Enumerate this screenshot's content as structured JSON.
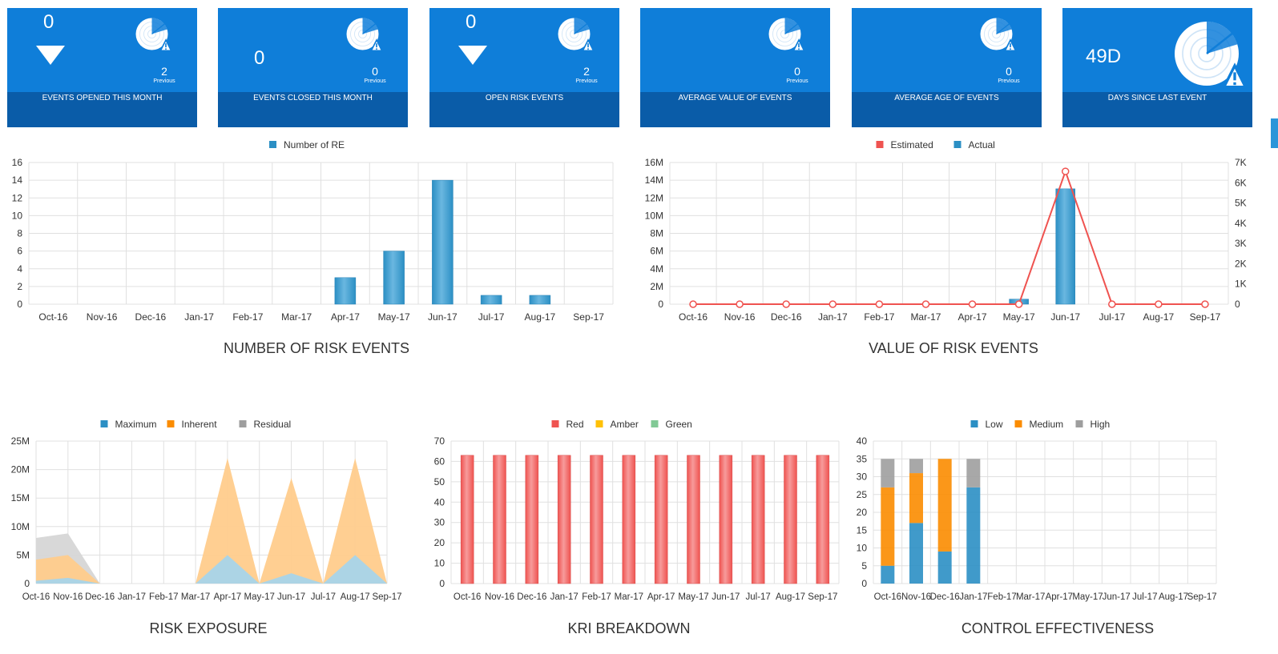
{
  "tiles": [
    {
      "value": "0",
      "arrow": true,
      "previous_value": "2",
      "previous_label": "Previous",
      "label": "EVENTS OPENED THIS MONTH"
    },
    {
      "value": "0",
      "arrow": false,
      "previous_value": "0",
      "previous_label": "Previous",
      "label": "EVENTS CLOSED THIS MONTH"
    },
    {
      "value": "0",
      "arrow": true,
      "previous_value": "2",
      "previous_label": "Previous",
      "label": "OPEN RISK EVENTS"
    },
    {
      "value": "",
      "arrow": false,
      "previous_value": "0",
      "previous_label": "Previous",
      "label": "AVERAGE VALUE OF EVENTS"
    },
    {
      "value": "",
      "arrow": false,
      "previous_value": "0",
      "previous_label": "Previous",
      "label": "AVERAGE AGE OF EVENTS"
    },
    {
      "value": "49D",
      "arrow": false,
      "previous_value": "",
      "previous_label": "",
      "label": "DAYS SINCE LAST EVENT"
    }
  ],
  "tile_icon": "radar-alert-icon",
  "colors": {
    "tile_bg": "#0f7ed9",
    "tile_band": "#0a5ca8",
    "blue_series": "#2b8fc4",
    "red": "#ef5350",
    "orange": "#fb8c00",
    "gray": "#9e9e9e",
    "amber": "#ffc107",
    "green": "#81c995"
  },
  "chart_data": [
    {
      "id": "number-of-risk-events",
      "type": "bar",
      "title": "NUMBER OF RISK EVENTS",
      "categories": [
        "Oct-16",
        "Nov-16",
        "Dec-16",
        "Jan-17",
        "Feb-17",
        "Mar-17",
        "Apr-17",
        "May-17",
        "Jun-17",
        "Jul-17",
        "Aug-17",
        "Sep-17"
      ],
      "series": [
        {
          "name": "Number of RE",
          "values": [
            0,
            0,
            0,
            0,
            0,
            0,
            3,
            6,
            14,
            1,
            1,
            0
          ]
        }
      ],
      "ylim": [
        0,
        16
      ],
      "yticks": [
        "0",
        "2",
        "4",
        "6",
        "8",
        "10",
        "12",
        "14",
        "16"
      ],
      "legend": "top-center",
      "grid": true
    },
    {
      "id": "value-of-risk-events",
      "type": "bar",
      "title": "VALUE OF RISK EVENTS",
      "categories": [
        "Oct-16",
        "Nov-16",
        "Dec-16",
        "Jan-17",
        "Feb-17",
        "Mar-17",
        "Apr-17",
        "May-17",
        "Jun-17",
        "Jul-17",
        "Aug-17",
        "Sep-17"
      ],
      "series": [
        {
          "name": "Estimated",
          "kind": "line",
          "axis": "left",
          "values": [
            0,
            0,
            0,
            0,
            0,
            0,
            0,
            0,
            15000000,
            0,
            0,
            0
          ]
        },
        {
          "name": "Actual",
          "kind": "bar",
          "axis": "right",
          "values": [
            0,
            0,
            0,
            0,
            0,
            0,
            0,
            250,
            5700,
            0,
            0,
            0
          ]
        }
      ],
      "ylim_left": [
        0,
        16000000
      ],
      "yticks_left": [
        "0",
        "2M",
        "4M",
        "6M",
        "8M",
        "10M",
        "12M",
        "14M",
        "16M"
      ],
      "ylim_right": [
        0,
        7000
      ],
      "yticks_right": [
        "0",
        "1K",
        "2K",
        "3K",
        "4K",
        "5K",
        "6K",
        "7K"
      ],
      "legend": "top-center",
      "grid": true
    },
    {
      "id": "risk-exposure",
      "type": "area",
      "title": "RISK EXPOSURE",
      "categories": [
        "Oct-16",
        "Nov-16",
        "Dec-16",
        "Jan-17",
        "Feb-17",
        "Mar-17",
        "Apr-17",
        "May-17",
        "Jun-17",
        "Jul-17",
        "Aug-17",
        "Sep-17"
      ],
      "series": [
        {
          "name": "Maximum",
          "values": [
            500000,
            1000000,
            0,
            0,
            0,
            0,
            5000000,
            0,
            1800000,
            0,
            5000000,
            0
          ]
        },
        {
          "name": "Inherent",
          "values": [
            4200000,
            5000000,
            0,
            0,
            0,
            0,
            22000000,
            0,
            18500000,
            0,
            22000000,
            0
          ]
        },
        {
          "name": "Residual",
          "values": [
            8000000,
            8800000,
            0,
            0,
            0,
            0,
            0,
            0,
            0,
            0,
            0,
            0
          ]
        }
      ],
      "ylim": [
        0,
        25000000
      ],
      "yticks": [
        "0",
        "5M",
        "10M",
        "15M",
        "20M",
        "25M"
      ],
      "legend": "top-center",
      "grid": true
    },
    {
      "id": "kri-breakdown",
      "type": "bar",
      "title": "KRI BREAKDOWN",
      "categories": [
        "Oct-16",
        "Nov-16",
        "Dec-16",
        "Jan-17",
        "Feb-17",
        "Mar-17",
        "Apr-17",
        "May-17",
        "Jun-17",
        "Jul-17",
        "Aug-17",
        "Sep-17"
      ],
      "series": [
        {
          "name": "Red",
          "values": [
            63,
            63,
            63,
            63,
            63,
            63,
            63,
            63,
            63,
            63,
            63,
            63
          ]
        },
        {
          "name": "Amber",
          "values": [
            0,
            0,
            0,
            0,
            0,
            0,
            0,
            0,
            0,
            0,
            0,
            0
          ]
        },
        {
          "name": "Green",
          "values": [
            0,
            0,
            0,
            0,
            0,
            0,
            0,
            0,
            0,
            0,
            0,
            0
          ]
        }
      ],
      "ylim": [
        0,
        70
      ],
      "yticks": [
        "0",
        "10",
        "20",
        "30",
        "40",
        "50",
        "60",
        "70"
      ],
      "legend": "top-center",
      "grid": true
    },
    {
      "id": "control-effectiveness",
      "type": "bar",
      "stacked": true,
      "title": "CONTROL EFFECTIVENESS",
      "categories": [
        "Oct-16",
        "Nov-16",
        "Dec-16",
        "Jan-17",
        "Feb-17",
        "Mar-17",
        "Apr-17",
        "May-17",
        "Jun-17",
        "Jul-17",
        "Aug-17",
        "Sep-17"
      ],
      "series": [
        {
          "name": "Low",
          "values": [
            5,
            17,
            9,
            27,
            0,
            0,
            0,
            0,
            0,
            0,
            0,
            0
          ]
        },
        {
          "name": "Medium",
          "values": [
            22,
            14,
            26,
            0,
            0,
            0,
            0,
            0,
            0,
            0,
            0,
            0
          ]
        },
        {
          "name": "High",
          "values": [
            8,
            4,
            0,
            8,
            0,
            0,
            0,
            0,
            0,
            0,
            0,
            0
          ]
        }
      ],
      "ylim": [
        0,
        40
      ],
      "yticks": [
        "0",
        "5",
        "10",
        "15",
        "20",
        "25",
        "30",
        "35",
        "40"
      ],
      "legend": "top-center",
      "grid": true
    }
  ]
}
